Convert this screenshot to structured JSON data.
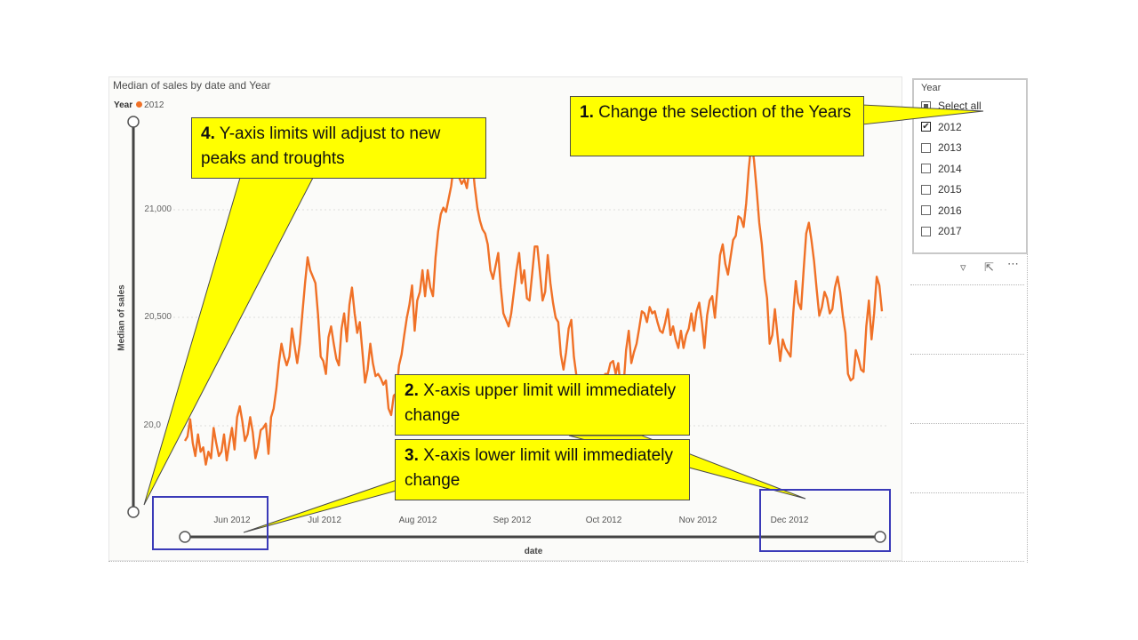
{
  "chart_title": "Median of sales by date and Year",
  "legend": {
    "label": "Year",
    "series": "2012",
    "color": "#f07127"
  },
  "y_axis": {
    "label": "Median of sales",
    "ticks": [
      "21,000",
      "20,500",
      "20,0"
    ]
  },
  "x_axis": {
    "label": "date",
    "ticks": [
      "Jun 2012",
      "Jul 2012",
      "Aug 2012",
      "Sep 2012",
      "Oct 2012",
      "Nov 2012",
      "Dec 2012"
    ]
  },
  "slicer": {
    "title": "Year",
    "items": [
      {
        "label": "Select all",
        "state": "partial"
      },
      {
        "label": "2012",
        "state": "checked"
      },
      {
        "label": "2013",
        "state": "unchecked"
      },
      {
        "label": "2014",
        "state": "unchecked"
      },
      {
        "label": "2015",
        "state": "unchecked"
      },
      {
        "label": "2016",
        "state": "unchecked"
      },
      {
        "label": "2017",
        "state": "unchecked"
      }
    ]
  },
  "callouts": [
    {
      "num": "1.",
      "text": "Change the selection of the Years"
    },
    {
      "num": "2.",
      "text": "X-axis upper limit will immediately change"
    },
    {
      "num": "3.",
      "text": "X-axis lower limit will immediately change"
    },
    {
      "num": "4.",
      "text": "Y-axis limits will adjust to new peaks and troughts"
    }
  ],
  "chart_data": {
    "type": "line",
    "title": "Median of sales by date and Year",
    "xlabel": "date",
    "ylabel": "Median of sales",
    "series": [
      {
        "name": "2012",
        "color": "#f07127",
        "values": [
          19930,
          19950,
          20030,
          19920,
          19860,
          19960,
          19880,
          19900,
          19820,
          19880,
          19850,
          19990,
          19920,
          19860,
          19880,
          19960,
          19840,
          19920,
          19990,
          19890,
          20040,
          20090,
          20020,
          19930,
          19960,
          20040,
          19970,
          19850,
          19900,
          19980,
          19990,
          20010,
          19870,
          20040,
          20080,
          20170,
          20290,
          20380,
          20320,
          20280,
          20320,
          20450,
          20370,
          20290,
          20380,
          20520,
          20660,
          20780,
          20720,
          20690,
          20660,
          20510,
          20320,
          20300,
          20240,
          20410,
          20460,
          20380,
          20310,
          20280,
          20450,
          20520,
          20390,
          20560,
          20640,
          20520,
          20430,
          20480,
          20340,
          20200,
          20260,
          20380,
          20290,
          20230,
          20240,
          20220,
          20190,
          20210,
          20080,
          20050,
          20140,
          20150,
          20280,
          20330,
          20420,
          20500,
          20560,
          20650,
          20440,
          20580,
          20620,
          20720,
          20600,
          20720,
          20640,
          20600,
          20780,
          20900,
          20980,
          21010,
          20990,
          21050,
          21110,
          21210,
          21230,
          21150,
          21120,
          21140,
          21100,
          21190,
          21230,
          21110,
          21010,
          20950,
          20910,
          20890,
          20840,
          20720,
          20680,
          20740,
          20800,
          20640,
          20520,
          20490,
          20460,
          20520,
          20620,
          20720,
          20800,
          20660,
          20720,
          20590,
          20580,
          20700,
          20830,
          20830,
          20710,
          20580,
          20620,
          20790,
          20660,
          20570,
          20500,
          20480,
          20330,
          20260,
          20340,
          20450,
          20490,
          20320,
          20230,
          20150,
          20100,
          20050,
          19980,
          19930,
          19910,
          20000,
          20050,
          20100,
          20180,
          20240,
          20240,
          20290,
          20300,
          20240,
          20290,
          20160,
          20180,
          20350,
          20440,
          20290,
          20340,
          20380,
          20450,
          20530,
          20520,
          20480,
          20550,
          20520,
          20530,
          20480,
          20440,
          20430,
          20480,
          20540,
          20420,
          20460,
          20400,
          20360,
          20440,
          20360,
          20420,
          20450,
          20520,
          20440,
          20530,
          20570,
          20480,
          20360,
          20510,
          20580,
          20600,
          20500,
          20640,
          20790,
          20840,
          20750,
          20700,
          20780,
          20860,
          20880,
          20970,
          20960,
          20920,
          21030,
          21190,
          21310,
          21230,
          21090,
          20940,
          20840,
          20680,
          20590,
          20380,
          20420,
          20540,
          20420,
          20300,
          20400,
          20360,
          20340,
          20320,
          20520,
          20670,
          20570,
          20540,
          20720,
          20890,
          20940,
          20860,
          20760,
          20630,
          20510,
          20550,
          20620,
          20590,
          20520,
          20540,
          20640,
          20690,
          20620,
          20510,
          20430,
          20240,
          20210,
          20220,
          20350,
          20310,
          20260,
          20250,
          20460,
          20580,
          20400,
          20520,
          20690,
          20650,
          20530
        ]
      }
    ]
  }
}
